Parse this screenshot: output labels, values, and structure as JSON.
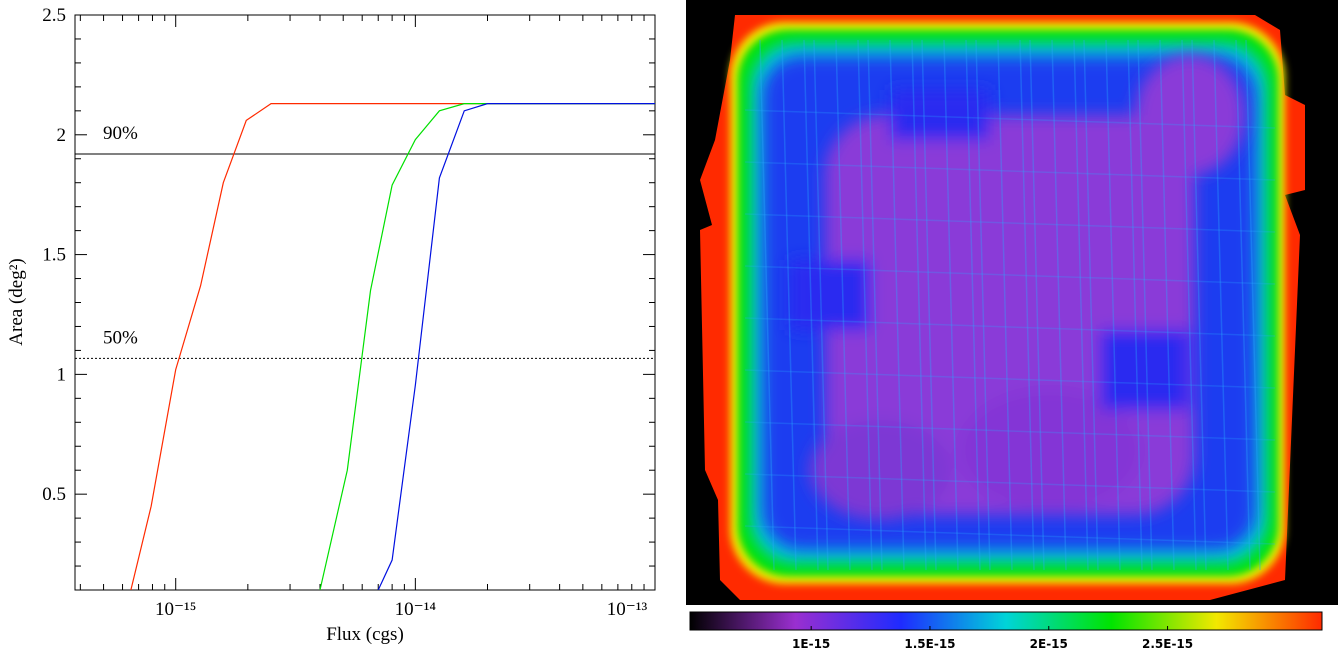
{
  "chart_data": [
    {
      "type": "line",
      "xlabel": "Flux (cgs)",
      "ylabel": "Area (deg²)",
      "xscale": "log",
      "xlim": [
        3.8e-16,
        1e-13
      ],
      "ylim": [
        0.1,
        2.5
      ],
      "xticks": [
        {
          "value": 1e-15,
          "label": "10⁻¹⁵"
        },
        {
          "value": 1e-14,
          "label": "10⁻¹⁴"
        },
        {
          "value": 1e-13,
          "label": "10⁻¹³"
        }
      ],
      "xminor_ticks": [
        4e-16,
        5e-16,
        6e-16,
        7e-16,
        8e-16,
        9e-16,
        2e-15,
        3e-15,
        4e-15,
        5e-15,
        6e-15,
        7e-15,
        8e-15,
        9e-15,
        2e-14,
        3e-14,
        4e-14,
        5e-14,
        6e-14,
        7e-14,
        8e-14,
        9e-14
      ],
      "yticks": [
        0.5,
        1,
        1.5,
        2,
        2.5
      ],
      "yminor_ticks": [
        0.1,
        0.2,
        0.3,
        0.4,
        0.6,
        0.7,
        0.8,
        0.9,
        1.1,
        1.2,
        1.3,
        1.4,
        1.6,
        1.7,
        1.8,
        1.9,
        2.1,
        2.2,
        2.3,
        2.4
      ],
      "hlines": [
        {
          "value": 1.92,
          "label": "90%",
          "style": "solid"
        },
        {
          "value": 1.067,
          "label": "50%",
          "style": "dotted"
        }
      ],
      "series": [
        {
          "color": "#ff2a00",
          "x": [
            6.5e-16,
            7.9e-16,
            1e-15,
            1.27e-15,
            1.58e-15,
            1.97e-15,
            2.5e-15,
            1e-13
          ],
          "values": [
            0.1,
            0.45,
            1.02,
            1.37,
            1.8,
            2.06,
            2.13,
            2.13
          ]
        },
        {
          "color": "#00e000",
          "x": [
            4e-15,
            5.2e-15,
            6.5e-15,
            8e-15,
            1e-14,
            1.26e-14,
            1.6e-14,
            1e-13
          ],
          "values": [
            0.1,
            0.6,
            1.35,
            1.79,
            1.98,
            2.1,
            2.13,
            2.13
          ]
        },
        {
          "color": "#0010e0",
          "x": [
            7e-15,
            8e-15,
            1e-14,
            1.26e-14,
            1.6e-14,
            2e-14,
            1e-13
          ],
          "values": [
            0.1,
            0.225,
            0.955,
            1.82,
            2.1,
            2.13,
            2.13
          ]
        }
      ]
    },
    {
      "type": "colorbar",
      "clim": [
        4.9e-16,
        3.15e-15
      ],
      "cticks": [
        {
          "value": 1e-15,
          "label": "1E-15"
        },
        {
          "value": 1.5e-15,
          "label": "1.5E-15"
        },
        {
          "value": 2e-15,
          "label": "2E-15"
        },
        {
          "value": 2.5e-15,
          "label": "2.5E-15"
        }
      ],
      "colormap": [
        "#000000",
        "#9a2fd0",
        "#1f2bff",
        "#00d4d8",
        "#00e400",
        "#f2e800",
        "#ff2a00"
      ]
    }
  ]
}
